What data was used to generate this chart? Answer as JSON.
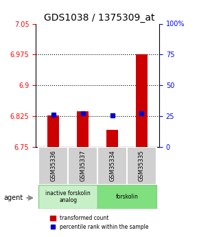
{
  "title": "GDS1038 / 1375309_at",
  "samples": [
    "GSM35336",
    "GSM35337",
    "GSM35334",
    "GSM35335"
  ],
  "red_values": [
    6.826,
    6.836,
    6.792,
    6.976
  ],
  "blue_values": [
    6.829,
    6.832,
    6.826,
    6.831
  ],
  "baseline": 6.75,
  "ylim_left": [
    6.75,
    7.05
  ],
  "ylim_right": [
    0,
    100
  ],
  "yticks_left": [
    6.75,
    6.825,
    6.9,
    6.975,
    7.05
  ],
  "ytick_labels_left": [
    "6.75",
    "6.825",
    "6.9",
    "6.975",
    "7.05"
  ],
  "yticks_right": [
    0,
    25,
    50,
    75,
    100
  ],
  "ytick_labels_right": [
    "0",
    "25",
    "50",
    "75",
    "100%"
  ],
  "hlines": [
    6.825,
    6.9,
    6.975
  ],
  "agent_groups": [
    {
      "label": "inactive forskolin\nanalog",
      "start": 0,
      "end": 2,
      "color": "#c8f0c8"
    },
    {
      "label": "forskolin",
      "start": 2,
      "end": 4,
      "color": "#80e080"
    }
  ],
  "bar_width": 0.4,
  "bar_color": "#cc0000",
  "blue_color": "#0000cc",
  "background_color": "#ffffff",
  "grid_color": "#000000",
  "title_fontsize": 10,
  "tick_fontsize": 7,
  "label_fontsize": 7
}
